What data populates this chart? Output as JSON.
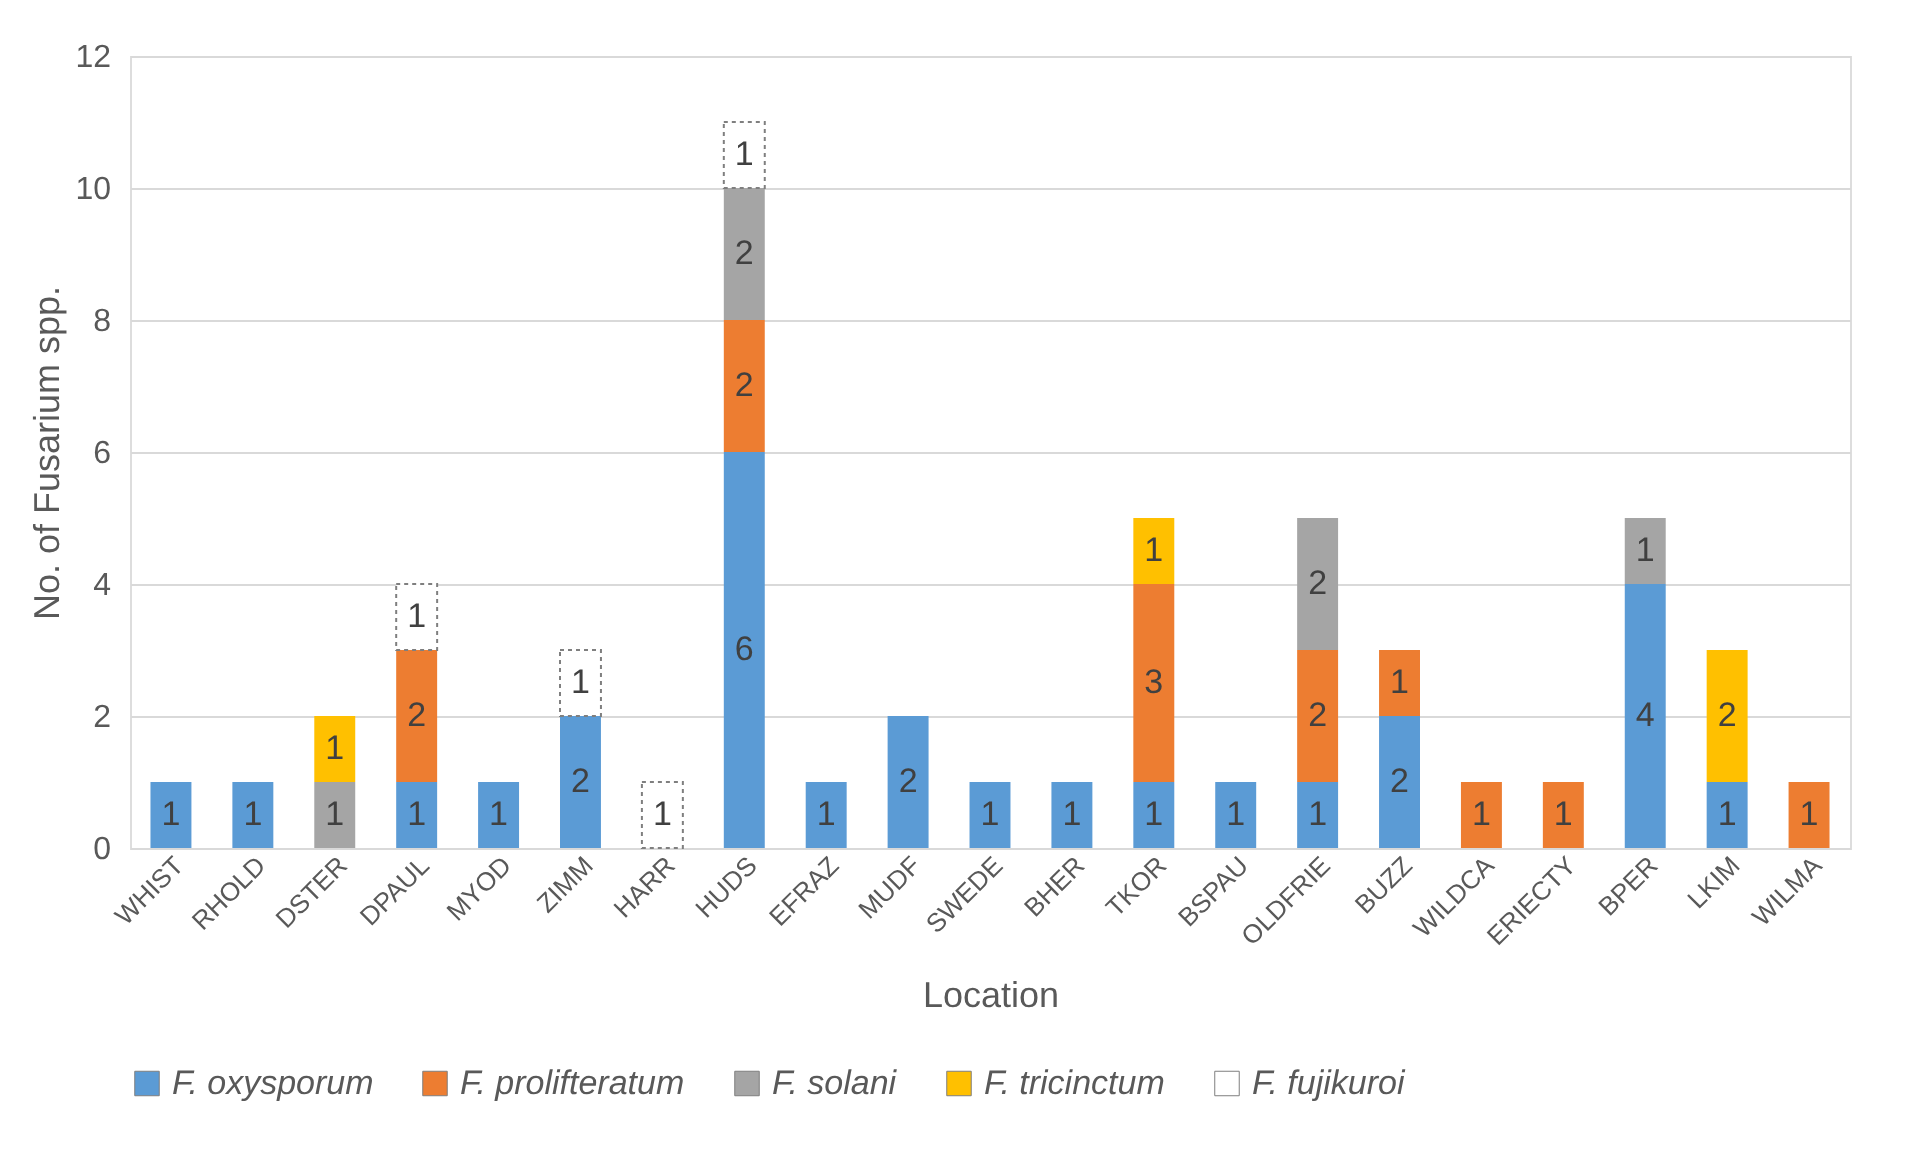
{
  "chart_data": {
    "type": "bar",
    "stacked": true,
    "xlabel": "Location",
    "ylabel": "No. of Fusarium spp.",
    "categories": [
      "WHIST",
      "RHOLD",
      "DSTER",
      "DPAUL",
      "MYOD",
      "ZIMM",
      "HARR",
      "HUDS",
      "EFRAZ",
      "MUDF",
      "SWEDE",
      "BHER",
      "TKOR",
      "BSPAU",
      "OLDFRIE",
      "BUZZ",
      "WILDCA",
      "ERIECTY",
      "BPER",
      "LKIM",
      "WILMA"
    ],
    "series": [
      {
        "name": "F. oxysporum",
        "color": "#5b9bd5",
        "values": [
          1,
          1,
          null,
          1,
          1,
          2,
          null,
          6,
          1,
          2,
          1,
          1,
          1,
          1,
          1,
          2,
          null,
          null,
          4,
          1,
          null
        ]
      },
      {
        "name": "F. prolifteratum",
        "color": "#ed7d31",
        "values": [
          null,
          null,
          null,
          2,
          null,
          null,
          null,
          2,
          null,
          null,
          null,
          null,
          3,
          null,
          2,
          1,
          1,
          1,
          null,
          null,
          1
        ]
      },
      {
        "name": "F. solani",
        "color": "#a5a5a5",
        "values": [
          null,
          null,
          1,
          null,
          null,
          null,
          null,
          2,
          null,
          null,
          null,
          null,
          null,
          null,
          2,
          null,
          null,
          null,
          1,
          null,
          null
        ]
      },
      {
        "name": "F. tricinctum",
        "color": "#ffc000",
        "values": [
          null,
          null,
          1,
          null,
          null,
          null,
          null,
          null,
          null,
          null,
          null,
          null,
          1,
          null,
          null,
          null,
          null,
          null,
          null,
          2,
          null
        ]
      },
      {
        "name": "F. fujikuroi",
        "color": "#ffffff",
        "values": [
          null,
          null,
          null,
          1,
          null,
          1,
          1,
          1,
          null,
          null,
          null,
          null,
          null,
          null,
          null,
          null,
          null,
          null,
          null,
          null,
          null
        ]
      }
    ],
    "ylim": [
      0,
      12
    ],
    "yticks": [
      0,
      2,
      4,
      6,
      8,
      10,
      12
    ],
    "grid": "y",
    "legend": "bottom",
    "data_labels": true
  }
}
